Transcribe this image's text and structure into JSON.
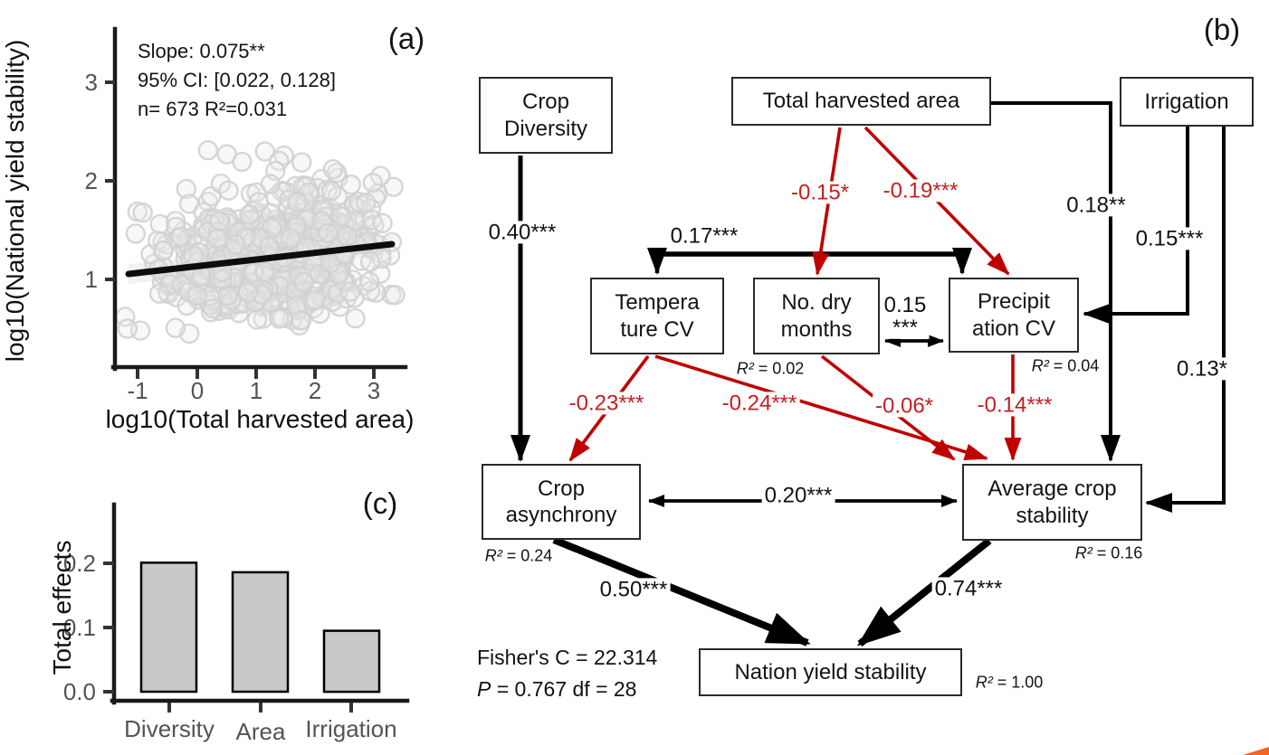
{
  "colors": {
    "red_path": "#C00000",
    "red_label": "#C42020",
    "black_path": "#000000",
    "axis_black": "#1A1A1A",
    "tick_gray": "#545454",
    "bar_fill": "#C9C9C9",
    "point_stroke": "#D2D2D2",
    "orange_decoration": "#F26524"
  },
  "chart_data": [
    {
      "type": "scatter",
      "panel_tag": "(a)",
      "xlabel": "log10(Total harvested area)",
      "ylabel": "log10(National yield stability)",
      "xticks": [
        -1,
        0,
        1,
        2,
        3
      ],
      "yticks": [
        1,
        2,
        3
      ],
      "xtick_labels": [
        "-1",
        "0",
        "1",
        "2",
        "3"
      ],
      "ytick_labels": [
        "3",
        "2",
        "1"
      ],
      "xlim": [
        -1.45,
        3.5
      ],
      "ylim": [
        0.3,
        3.45
      ],
      "grid": false,
      "legend": false,
      "annotation": [
        "Slope: 0.075**",
        "95% CI: [0.022, 0.128]",
        "n= 673 R²=0.031"
      ],
      "regression": {
        "slope": 0.075,
        "ci_95": [
          0.022,
          0.128
        ],
        "n": 673,
        "r2": 0.031,
        "line_x": [
          -1.17,
          3.3
        ],
        "line_y": [
          1.04,
          1.37
        ]
      },
      "point_cloud": {
        "n_drawn": 640,
        "seed": 7,
        "x_mean": 1.35,
        "x_sd": 0.92,
        "x_range": [
          -1.3,
          3.35
        ],
        "y_intercept": 1.155,
        "y_slope": 0.072,
        "y_sd": 0.33,
        "y_range": [
          0.42,
          2.33
        ],
        "outliers": [
          [
            0.18,
            2.31
          ],
          [
            0.5,
            2.27
          ],
          [
            3.1,
            2.05
          ],
          [
            2.97,
            1.98
          ],
          [
            -1.22,
            0.62
          ],
          [
            -1.18,
            0.5
          ]
        ]
      }
    },
    {
      "type": "bar",
      "panel_tag": "(c)",
      "categories": [
        "Diversity",
        "Area",
        "Irrigation"
      ],
      "values": [
        0.201,
        0.186,
        0.095
      ],
      "ylabel": "Total effects",
      "xlabel": "",
      "yticks": [
        0.0,
        0.1,
        0.2
      ],
      "ytick_labels": [
        "0.2",
        "0.1",
        "0.0"
      ],
      "ylim": [
        0,
        0.29
      ],
      "grid": false,
      "legend": false
    }
  ],
  "diagram": {
    "panel_tag": "(b)",
    "r2_prefix": "R²",
    "nodes": {
      "crop_diversity": {
        "lines": [
          "Crop",
          "Diversity"
        ]
      },
      "total_harvested_area": {
        "lines": [
          "Total harvested area"
        ]
      },
      "irrigation": {
        "lines": [
          "Irrigation"
        ]
      },
      "temperature_cv": {
        "lines": [
          "Tempera",
          "ture CV"
        ]
      },
      "no_dry_months": {
        "lines": [
          "No. dry",
          "months"
        ],
        "r2_text": " = 0.02"
      },
      "precipitation_cv": {
        "lines": [
          "Precipit",
          "ation CV"
        ],
        "r2_text": " = 0.04"
      },
      "crop_asynchrony": {
        "lines": [
          "Crop",
          "asynchrony"
        ],
        "r2_text": " = 0.24"
      },
      "average_crop_stability": {
        "lines": [
          "Average crop",
          "stability"
        ],
        "r2_text": " = 0.16"
      },
      "nation_yield_stability": {
        "lines": [
          "Nation yield stability"
        ],
        "r2_text": " = 1.00"
      }
    },
    "edges": {
      "crop_diversity__crop_asynchrony": {
        "label": "0.40***",
        "color": "black"
      },
      "temperature_cv__precipitation_cv": {
        "label": "0.17***",
        "color": "black"
      },
      "total_harvested_area__no_dry_months": {
        "label": "-0.15*",
        "color": "red"
      },
      "total_harvested_area__precipitation_cv": {
        "label": "-0.19***",
        "color": "red"
      },
      "total_harvested_area__average_crop_stability": {
        "label": "0.18**",
        "color": "black"
      },
      "irrigation__precipitation_cv": {
        "label": "0.15***",
        "color": "black"
      },
      "irrigation__average_crop_stability": {
        "label": "0.13*",
        "color": "black"
      },
      "no_dry_months__precipitation_cv": {
        "label": "0.15\n***",
        "color": "black"
      },
      "temperature_cv__crop_asynchrony": {
        "label": "-0.23***",
        "color": "red"
      },
      "temperature_cv__average_crop_stability": {
        "label": "-0.24***",
        "color": "red"
      },
      "no_dry_months__average_crop_stability": {
        "label": "-0.06*",
        "color": "red"
      },
      "precipitation_cv__average_crop_stability": {
        "label": "-0.14***",
        "color": "red"
      },
      "crop_asynchrony__average_crop_stability": {
        "label": "0.20***",
        "color": "black"
      },
      "crop_asynchrony__nation_yield_stability": {
        "label": "0.50***",
        "color": "black"
      },
      "average_crop_stability__nation_yield_stability": {
        "label": "0.74***",
        "color": "black"
      }
    },
    "fit": {
      "line1": "Fisher's C = 22.314",
      "p_symbol": "P",
      "p_rest": " = 0.767 df = 28"
    }
  }
}
